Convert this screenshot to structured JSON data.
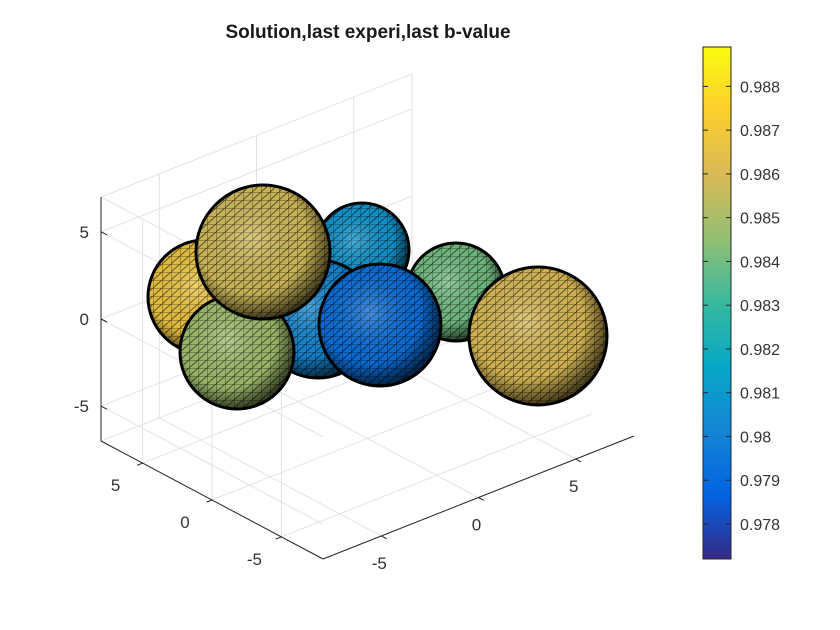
{
  "chart_data": {
    "type": "surface3d",
    "title": "Solution,last experi,last b-value",
    "colormap": "parula",
    "axes": {
      "x": {
        "ticks": [
          -5,
          0,
          5
        ],
        "labels": [
          "-5",
          "0",
          "5"
        ],
        "range": [
          -8,
          8
        ]
      },
      "y": {
        "ticks": [
          -5,
          0,
          5
        ],
        "labels": [
          "-5",
          "0",
          "5"
        ],
        "range": [
          -8,
          8
        ]
      },
      "z": {
        "ticks": [
          -5,
          0,
          5
        ],
        "labels": [
          "-5",
          "0",
          "5"
        ],
        "range": [
          -7,
          7
        ]
      }
    },
    "colorbar": {
      "range": [
        0.9772,
        0.9889
      ],
      "ticks": [
        0.978,
        0.979,
        0.98,
        0.981,
        0.982,
        0.983,
        0.984,
        0.985,
        0.986,
        0.987,
        0.988
      ],
      "labels": [
        "0.978",
        "0.979",
        "0.98",
        "0.981",
        "0.982",
        "0.983",
        "0.984",
        "0.985",
        "0.986",
        "0.987",
        "0.988"
      ]
    },
    "spheres": [
      {
        "name": "sphere-left-orange",
        "value": 0.9868
      },
      {
        "name": "sphere-back-center",
        "value": 0.9808
      },
      {
        "name": "sphere-back-right",
        "value": 0.984
      },
      {
        "name": "sphere-center-blue-left",
        "value": 0.9802
      },
      {
        "name": "sphere-center-blue-right",
        "value": 0.9792
      },
      {
        "name": "sphere-front-left-green",
        "value": 0.9848
      },
      {
        "name": "sphere-top-left-olive",
        "value": 0.9858
      },
      {
        "name": "sphere-front-right-olive",
        "value": 0.986
      }
    ]
  }
}
